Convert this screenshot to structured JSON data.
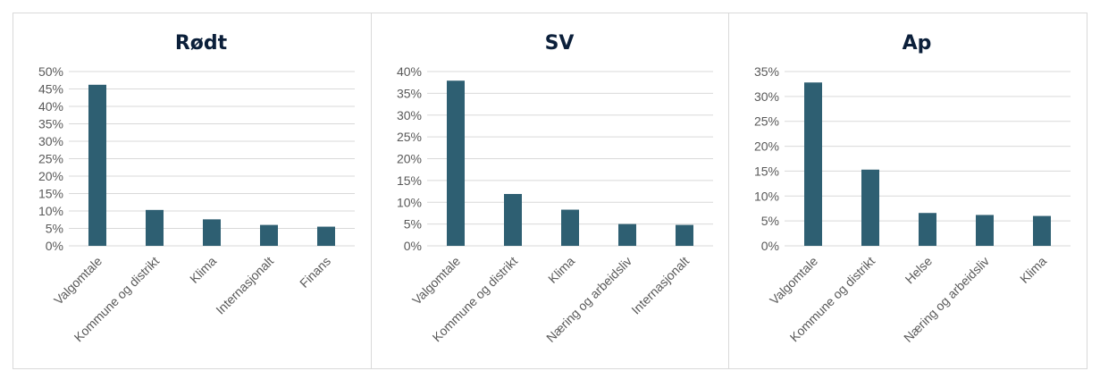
{
  "colors": {
    "bar": "#2e5f72",
    "grid": "#d9d9d9",
    "title": "#0b1f3a",
    "tick_text": "#595959",
    "border": "#d9d9d9"
  },
  "chart_data": [
    {
      "type": "bar",
      "title": "Rødt",
      "categories": [
        "Valgomtale",
        "Kommune og distrikt",
        "Klima",
        "Internasjonalt",
        "Finans"
      ],
      "values": [
        46.2,
        10.3,
        7.6,
        6.0,
        5.5
      ],
      "ylim": [
        0,
        50
      ],
      "yticks": [
        0,
        5,
        10,
        15,
        20,
        25,
        30,
        35,
        40,
        45,
        50
      ],
      "ytick_labels": [
        "0%",
        "5%",
        "10%",
        "15%",
        "20%",
        "25%",
        "30%",
        "35%",
        "40%",
        "45%",
        "50%"
      ],
      "grid": true,
      "legend": "none"
    },
    {
      "type": "bar",
      "title": "SV",
      "categories": [
        "Valgomtale",
        "Kommune og distrikt",
        "Klima",
        "Næring og arbeidsliv",
        "Internasjonalt"
      ],
      "values": [
        37.9,
        11.9,
        8.3,
        5.0,
        4.8
      ],
      "ylim": [
        0,
        40
      ],
      "yticks": [
        0,
        5,
        10,
        15,
        20,
        25,
        30,
        35,
        40
      ],
      "ytick_labels": [
        "0%",
        "5%",
        "10%",
        "15%",
        "20%",
        "25%",
        "30%",
        "35%",
        "40%"
      ],
      "grid": true,
      "legend": "none"
    },
    {
      "type": "bar",
      "title": "Ap",
      "categories": [
        "Valgomtale",
        "Kommune og distrikt",
        "Helse",
        "Næring og arbeidsliv",
        "Klima"
      ],
      "values": [
        32.8,
        15.3,
        6.6,
        6.2,
        6.0
      ],
      "ylim": [
        0,
        35
      ],
      "yticks": [
        0,
        5,
        10,
        15,
        20,
        25,
        30,
        35
      ],
      "ytick_labels": [
        "0%",
        "5%",
        "10%",
        "15%",
        "20%",
        "25%",
        "30%",
        "35%"
      ],
      "grid": true,
      "legend": "none"
    }
  ]
}
